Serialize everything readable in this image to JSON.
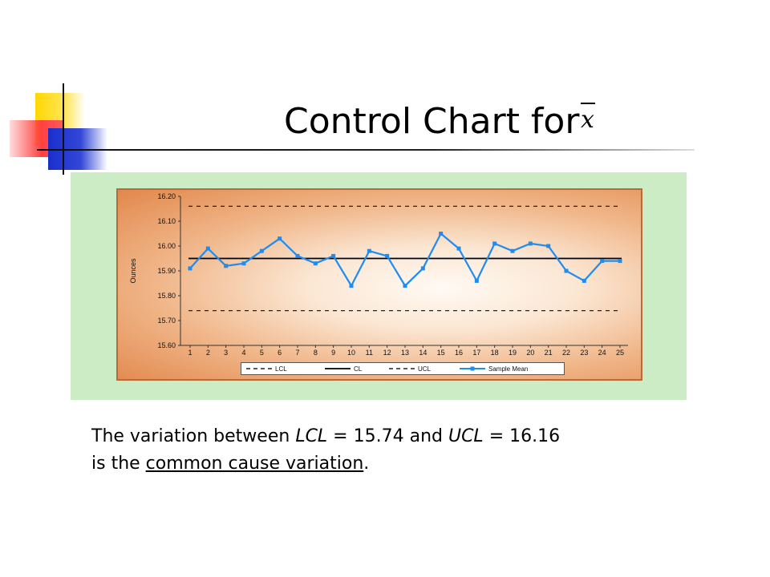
{
  "slide": {
    "title": "Control Chart for",
    "title_symbol": "x",
    "caption": {
      "part1": "The variation between ",
      "lcl_term": "LCL",
      "part2": " = 15.74 and ",
      "ucl_term": "UCL",
      "part3": " = 16.16",
      "part4": "is the ",
      "emphasis": "common cause variation",
      "part5": "."
    }
  },
  "colors": {
    "panel_background": "#ccecc6",
    "series_line": "#1f8cf0",
    "center_line": "#000000",
    "limit_line": "#222222"
  },
  "chart_data": {
    "type": "line",
    "title": "",
    "xlabel": "",
    "ylabel": "Ounces",
    "categories": [
      "1",
      "2",
      "3",
      "4",
      "5",
      "6",
      "7",
      "8",
      "9",
      "10",
      "11",
      "12",
      "13",
      "14",
      "15",
      "16",
      "17",
      "18",
      "19",
      "20",
      "21",
      "22",
      "23",
      "24",
      "25"
    ],
    "ylim": [
      15.6,
      16.2
    ],
    "yticks": [
      "16.20",
      "16.10",
      "16.00",
      "15.90",
      "15.80",
      "15.70",
      "15.60"
    ],
    "reference_lines": [
      {
        "name": "LCL",
        "value": 15.74,
        "style": "dashed"
      },
      {
        "name": "CL",
        "value": 15.95,
        "style": "solid"
      },
      {
        "name": "UCL",
        "value": 16.16,
        "style": "dashed"
      }
    ],
    "series": [
      {
        "name": "Sample Mean",
        "values": [
          15.91,
          15.99,
          15.92,
          15.93,
          15.98,
          16.03,
          15.96,
          15.93,
          15.96,
          15.84,
          15.98,
          15.96,
          15.84,
          15.91,
          16.05,
          15.99,
          15.86,
          16.01,
          15.98,
          16.01,
          16.0,
          15.9,
          15.86,
          15.94,
          15.94
        ]
      }
    ],
    "legend": {
      "position": "bottom",
      "entries": [
        "LCL",
        "CL",
        "UCL",
        "Sample Mean"
      ]
    },
    "grid": false
  }
}
